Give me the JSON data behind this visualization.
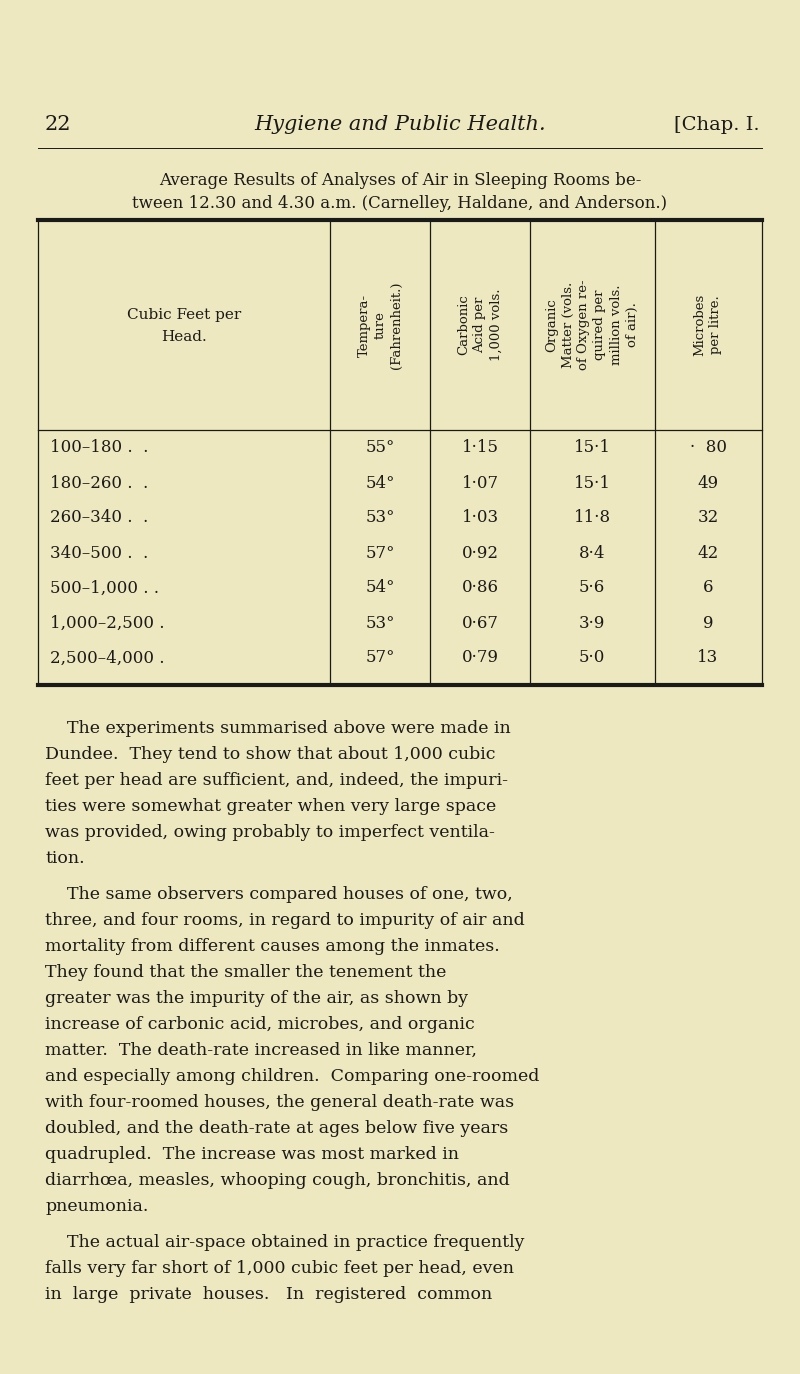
{
  "bg_color": "#eee8c0",
  "page_number": "22",
  "header_title": "Hygiene and Public Health.",
  "header_right": "[Chap. I.",
  "table_title_line1": "Average Results of Analyses of Air in Sleeping Rooms be-",
  "table_title_line2": "tween 12.30 and 4.30 a.m. (Carnelley, Haldane, and Anderson.)",
  "col_headers": [
    "Cubic Feet per\nHead.",
    "Tempera-\nture\n(Fahrenheit.)",
    "Carbonic\nAcid per\n1,000 vols.",
    "Organic\nMatter (vols.\nof Oxygen re-\nquired per\nmillion vols.\nof air).",
    "Microbes\nper litre."
  ],
  "table_data": [
    [
      "100–180 .  .",
      "55°",
      "1·15",
      "15·1",
      "·  80"
    ],
    [
      "180–260 .  .",
      "54°",
      "1·07",
      "15·1",
      "49"
    ],
    [
      "260–340 .  .",
      "53°",
      "1·03",
      "11·8",
      "32"
    ],
    [
      "340–500 .  .",
      "57°",
      "0·92",
      "8·4",
      "42"
    ],
    [
      "500–1,000 . .",
      "54°",
      "0·86",
      "5·6",
      "6"
    ],
    [
      "1,000–2,500 .",
      "53°",
      "0·67",
      "3·9",
      "9"
    ],
    [
      "2,500–4,000 .",
      "57°",
      "0·79",
      "5·0",
      "13"
    ]
  ],
  "body_paragraphs": [
    "    The experiments summarised above were made in Dundee.  They tend to show that about 1,000 cubic feet per head are sufficient, and, indeed, the impuri-ties were somewhat greater when very large space was provided, owing probably to imperfect ventila-tion.",
    "    The same observers compared houses of one, two, three, and four rooms, in regard to impurity of air and mortality from different causes among the inmates. They found that the smaller the tenement the greater was the impurity of the air, as shown by increase of carbonic acid, microbes, and organic matter.  The death-rate increased in like manner, and especially among children.  Comparing one-roomed with four-roomed houses, the general death-rate was doubled, and the death-rate at ages below five years quadrupled.  The increase was most marked in diarrhœa, measles, whooping cough, bronchitis, and pneumonia.",
    "    The actual air-space obtained in practice frequently falls very far short of 1,000 cubic feet per head, even in  large  private  houses.   In  registered  common"
  ],
  "para1_lines": [
    "    The experiments summarised above were made in",
    "Dundee.  They tend to show that about 1,000 cubic",
    "feet per head are sufficient, and, indeed, the impuri-",
    "ties were somewhat greater when very large space",
    "was provided, owing probably to imperfect ventila-",
    "tion."
  ],
  "para2_lines": [
    "    The same observers compared houses of one, two,",
    "three, and four rooms, in regard to impurity of air and",
    "mortality from different causes among the inmates.",
    "They found that the smaller the tenement the",
    "greater was the impurity of the air, as shown by",
    "increase of carbonic acid, microbes, and organic",
    "matter.  The death-rate increased in like manner,",
    "and especially among children.  Comparing one-roomed",
    "with four-roomed houses, the general death-rate was",
    "doubled, and the death-rate at ages below five years",
    "quadrupled.  The increase was most marked in",
    "diarrhœa, measles, whooping cough, bronchitis, and",
    "pneumonia."
  ],
  "para3_lines": [
    "    The actual air-space obtained in practice frequently",
    "falls very far short of 1,000 cubic feet per head, even",
    "in  large  private  houses.   In  registered  common"
  ],
  "text_color": "#1a1a18",
  "line_color": "#1a1a18"
}
